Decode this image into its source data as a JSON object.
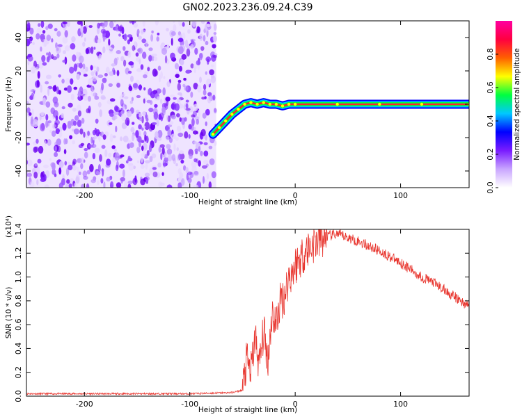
{
  "page": {
    "title": "GN02.2023.236.09.24.C39"
  },
  "chart_data": [
    {
      "type": "heatmap",
      "title": "GN02.2023.236.09.24.C39",
      "xlabel": "Height of straight line (km)",
      "ylabel": "Frequency (Hz)",
      "xlim": [
        -255,
        165
      ],
      "ylim": [
        -50,
        50
      ],
      "x_ticks": [
        -200,
        -100,
        0,
        100
      ],
      "y_ticks": [
        40,
        20,
        0,
        -20,
        -40
      ],
      "noise_region_x": [
        -255,
        -75
      ],
      "signal_track": {
        "x": [
          -78,
          -72,
          -66,
          -60,
          -54,
          -48,
          -42,
          -36,
          -30,
          -24,
          -18,
          -12,
          -6,
          0,
          40,
          80,
          120,
          165
        ],
        "y": [
          -18,
          -14,
          -10,
          -6,
          -3,
          0,
          1,
          0,
          1,
          0,
          0,
          -1,
          0,
          0,
          0,
          0,
          0,
          0
        ]
      },
      "colorbar": {
        "label": "Normalized spectral amplitude",
        "range": [
          0.0,
          1.0
        ],
        "ticks": [
          "0.0",
          "0.2",
          "0.4",
          "0.6",
          "0.8"
        ],
        "colors": [
          "#ffffff",
          "#c9a6ff",
          "#7a1cff",
          "#0000ff",
          "#00c8ff",
          "#00ff40",
          "#ffff00",
          "#ff6000",
          "#ff0040",
          "#ff00a0"
        ]
      }
    },
    {
      "type": "line",
      "xlabel": "Height of straight line (km)",
      "ylabel": "SNR (10 * v/v)",
      "y_multiplier": "(x10⁴)",
      "xlim": [
        -255,
        165
      ],
      "ylim": [
        0.0,
        1.4
      ],
      "x_ticks": [
        -200,
        -100,
        0,
        100
      ],
      "y_ticks": [
        "0.0",
        "0.2",
        "0.4",
        "0.6",
        "0.8",
        "1.0",
        "1.2",
        "1.4"
      ],
      "series": [
        {
          "color": "#e8352e",
          "x": [
            -255,
            -200,
            -150,
            -100,
            -60,
            -50,
            -46,
            -42,
            -38,
            -34,
            -30,
            -26,
            -22,
            -18,
            -14,
            -10,
            -6,
            -2,
            0,
            10,
            20,
            30,
            40,
            50,
            60,
            70,
            80,
            90,
            100,
            110,
            120,
            130,
            140,
            150,
            160,
            165
          ],
          "y": [
            0.02,
            0.02,
            0.02,
            0.02,
            0.03,
            0.05,
            0.3,
            0.2,
            0.5,
            0.25,
            0.55,
            0.3,
            0.7,
            0.6,
            0.8,
            0.85,
            1.0,
            1.05,
            1.1,
            1.22,
            1.3,
            1.34,
            1.36,
            1.33,
            1.3,
            1.26,
            1.22,
            1.17,
            1.12,
            1.06,
            1.0,
            0.96,
            0.9,
            0.84,
            0.78,
            0.76
          ]
        }
      ]
    }
  ]
}
